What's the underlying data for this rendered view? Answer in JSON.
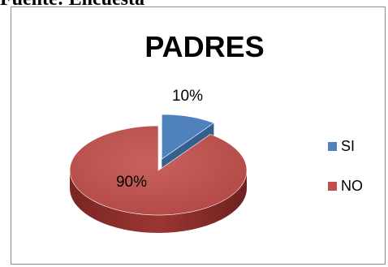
{
  "caption": "Fuente: Encuesta",
  "chart_data": {
    "type": "pie",
    "title": "PADRES",
    "categories": [
      "SI",
      "NO"
    ],
    "values": [
      10,
      90
    ],
    "data_labels": [
      "10%",
      "90%"
    ],
    "colors": [
      "#4f81bd",
      "#c0504d"
    ],
    "legend": "right",
    "three_d": true
  }
}
